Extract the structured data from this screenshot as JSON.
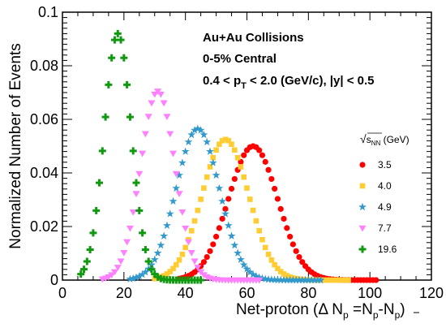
{
  "chart_data": {
    "type": "scatter",
    "xlabel_parts": {
      "main": "Net-proton (Δ N",
      "sub_p1": "p",
      "eq": " =N",
      "sub_p2": "p",
      "dash": "-N",
      "sub_pbar": "p",
      "close": ")"
    },
    "ylabel": "Normalized Number of Events",
    "xlim": [
      0,
      120
    ],
    "ylim": [
      0,
      0.1
    ],
    "x_ticks": [
      "0",
      "20",
      "40",
      "60",
      "80",
      "100",
      "120"
    ],
    "y_ticks": [
      "0",
      "0.02",
      "0.04",
      "0.06",
      "0.08",
      "0.1"
    ],
    "annotations": {
      "line1": "Au+Au Collisions",
      "line2": "0-5% Central",
      "line3_a": "0.4 < p",
      "line3_sub": "T",
      "line3_b": " < 2.0 (GeV/c), |y| < 0.5"
    },
    "legend": {
      "title_sqrt": "√",
      "title_s": "s",
      "title_sub": "NN",
      "title_unit": " (GeV)",
      "placement": "right"
    },
    "series": [
      {
        "name": "3.5",
        "color": "#ff0000",
        "marker": "circle",
        "mean": 62,
        "sigma": 8.0,
        "peak": 0.05,
        "xmin": 38,
        "xmax": 102
      },
      {
        "name": "4.0",
        "color": "#ffcc33",
        "marker": "square",
        "mean": 53,
        "sigma": 7.6,
        "peak": 0.0525,
        "xmin": 30,
        "xmax": 93
      },
      {
        "name": "4.9",
        "color": "#3399cc",
        "marker": "star",
        "mean": 44,
        "sigma": 7.0,
        "peak": 0.0565,
        "xmin": 22,
        "xmax": 84
      },
      {
        "name": "7.7",
        "color": "#ff80ff",
        "marker": "triangle-down",
        "mean": 31,
        "sigma": 5.6,
        "peak": 0.0705,
        "xmin": 13,
        "xmax": 64
      },
      {
        "name": "19.6",
        "color": "#119911",
        "marker": "cross",
        "mean": 18,
        "sigma": 4.4,
        "peak": 0.092,
        "xmin": 6,
        "xmax": 45
      }
    ]
  }
}
